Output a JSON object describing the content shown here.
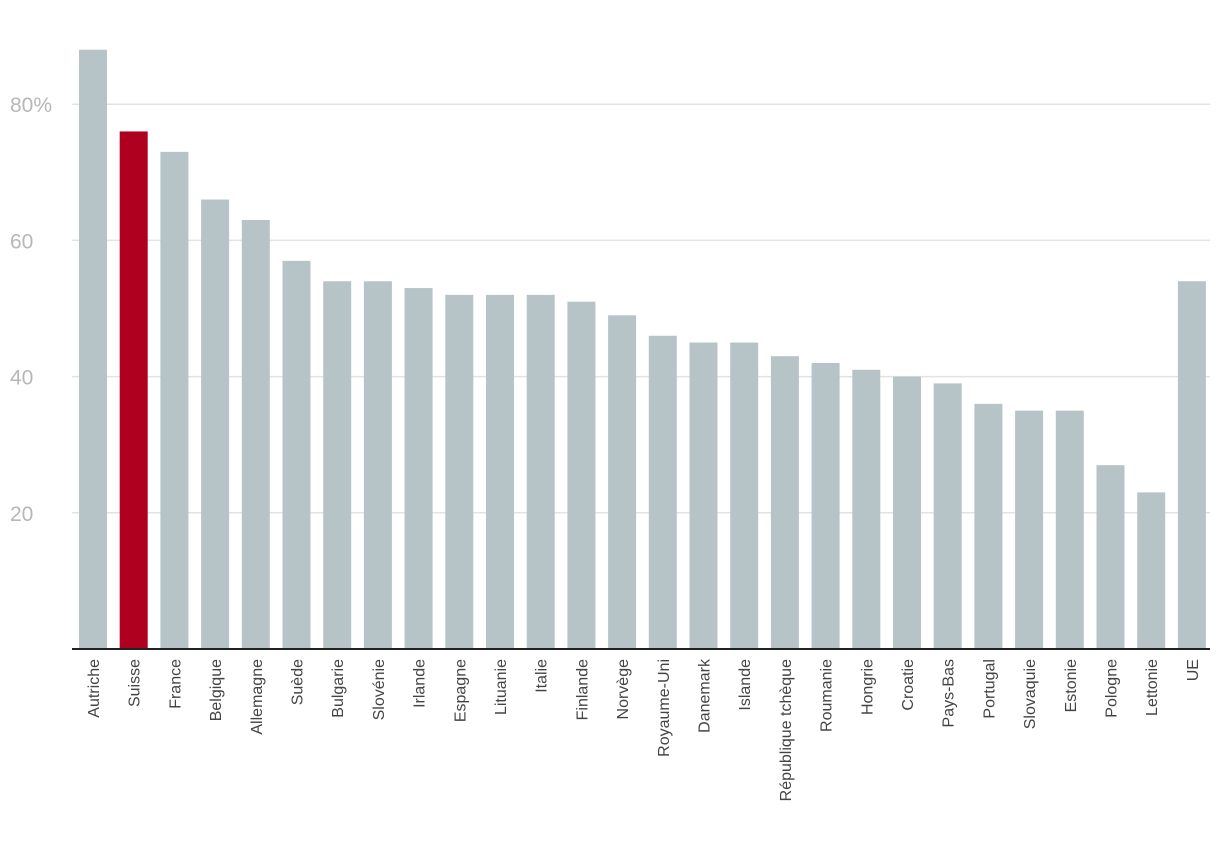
{
  "chart_data": {
    "type": "bar",
    "title": "",
    "xlabel": "",
    "ylabel": "",
    "ylim": [
      0,
      90
    ],
    "yticks": [
      {
        "value": 20,
        "label": "20"
      },
      {
        "value": 40,
        "label": "40"
      },
      {
        "value": 60,
        "label": "60"
      },
      {
        "value": 80,
        "label": "80%"
      }
    ],
    "grid": true,
    "categories": [
      "Autriche",
      "Suisse",
      "France",
      "Belgique",
      "Allemagne",
      "Suède",
      "Bulgarie",
      "Slovénie",
      "Irlande",
      "Espagne",
      "Lituanie",
      "Italie",
      "Finlande",
      "Norvège",
      "Royaume-Uni",
      "Danemark",
      "Islande",
      "République tchèque",
      "Roumanie",
      "Hongrie",
      "Croatie",
      "Pays-Bas",
      "Portugal",
      "Slovaquie",
      "Estonie",
      "Pologne",
      "Lettonie",
      "UE"
    ],
    "values": [
      88,
      76,
      73,
      66,
      63,
      57,
      54,
      54,
      53,
      52,
      52,
      52,
      51,
      49,
      46,
      45,
      45,
      43,
      42,
      41,
      40,
      39,
      36,
      35,
      35,
      27,
      23,
      54
    ],
    "highlight": "Suisse",
    "colors": {
      "bar": "#b6c4c7",
      "highlight": "#af0020",
      "grid": "#e3e3e3",
      "axis": "#222222",
      "tick_label": "#b7b7b7",
      "category_label": "#444444"
    }
  }
}
